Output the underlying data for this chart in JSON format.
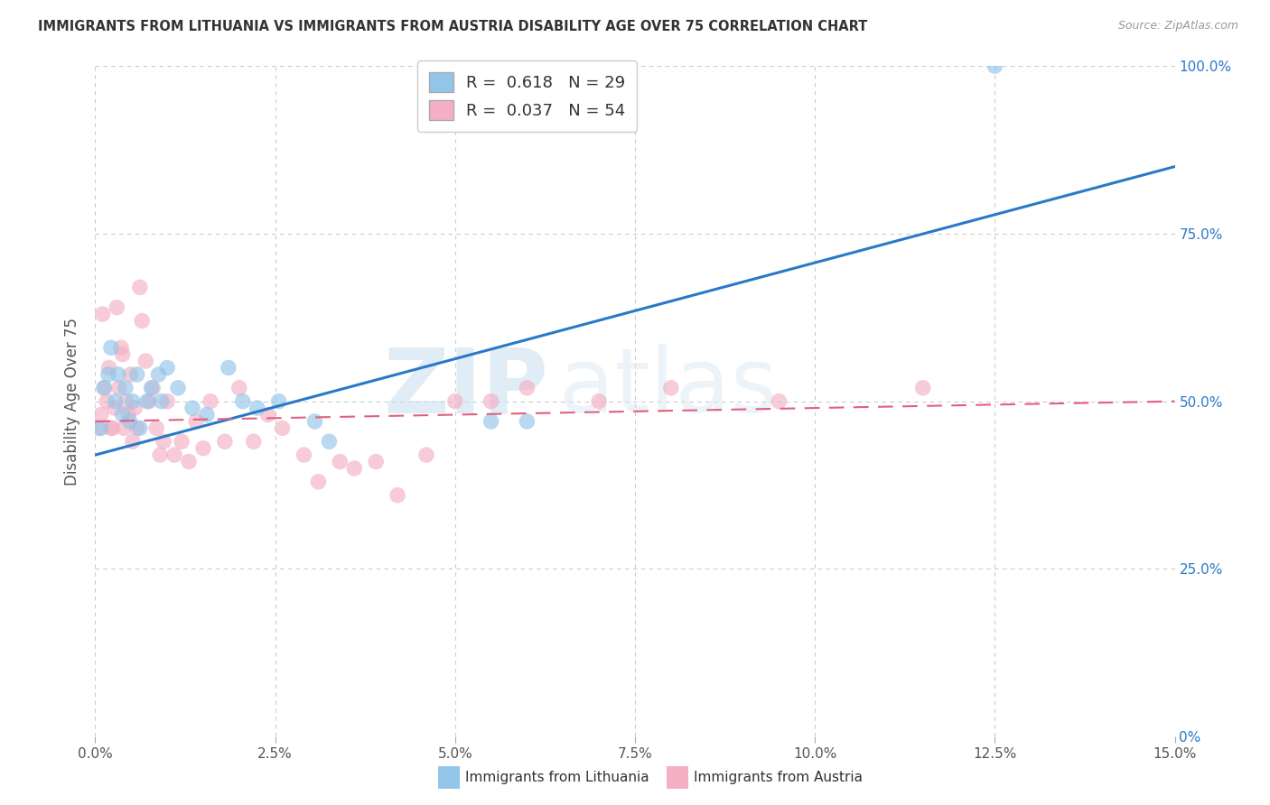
{
  "title": "IMMIGRANTS FROM LITHUANIA VS IMMIGRANTS FROM AUSTRIA DISABILITY AGE OVER 75 CORRELATION CHART",
  "source": "Source: ZipAtlas.com",
  "ylabel": "Disability Age Over 75",
  "x_ticks": [
    0.0,
    2.5,
    5.0,
    7.5,
    10.0,
    12.5,
    15.0
  ],
  "x_ticklabels": [
    "0.0%",
    "2.5%",
    "5.0%",
    "7.5%",
    "10.0%",
    "12.5%",
    "15.0%"
  ],
  "y_ticks": [
    0,
    25,
    50,
    75,
    100
  ],
  "y_ticklabels_right": [
    "0%",
    "25.0%",
    "50.0%",
    "75.0%",
    "100.0%"
  ],
  "xlim": [
    0.0,
    15.0
  ],
  "ylim": [
    0,
    100
  ],
  "color_blue": "#92c5e8",
  "color_pink": "#f4afc4",
  "color_blue_line": "#2979c8",
  "color_pink_line": "#e06080",
  "watermark_zip": "ZIP",
  "watermark_atlas": "atlas",
  "R1": 0.618,
  "N1": 29,
  "R2": 0.037,
  "N2": 54,
  "legend_label1": "Immigrants from Lithuania",
  "legend_label2": "Immigrants from Austria",
  "lithuania_x": [
    0.08,
    0.12,
    0.18,
    0.22,
    0.28,
    0.32,
    0.38,
    0.42,
    0.48,
    0.52,
    0.58,
    0.62,
    0.72,
    0.78,
    0.88,
    0.92,
    1.0,
    1.15,
    1.35,
    1.55,
    1.85,
    2.05,
    2.25,
    2.55,
    3.05,
    3.25,
    5.5,
    6.0,
    12.5
  ],
  "lithuania_y": [
    46,
    52,
    54,
    58,
    50,
    54,
    48,
    52,
    47,
    50,
    54,
    46,
    50,
    52,
    54,
    50,
    55,
    52,
    49,
    48,
    55,
    50,
    49,
    50,
    47,
    44,
    47,
    47,
    100
  ],
  "austria_x": [
    0.04,
    0.08,
    0.1,
    0.13,
    0.16,
    0.19,
    0.22,
    0.24,
    0.27,
    0.3,
    0.33,
    0.36,
    0.38,
    0.4,
    0.43,
    0.46,
    0.49,
    0.52,
    0.55,
    0.58,
    0.62,
    0.65,
    0.7,
    0.75,
    0.8,
    0.85,
    0.9,
    0.95,
    1.0,
    1.1,
    1.2,
    1.3,
    1.4,
    1.5,
    1.6,
    1.8,
    2.0,
    2.2,
    2.4,
    2.6,
    2.9,
    3.1,
    3.4,
    3.6,
    3.9,
    4.2,
    4.6,
    5.0,
    5.5,
    6.0,
    7.0,
    8.0,
    9.5,
    11.5
  ],
  "austria_y": [
    46,
    48,
    63,
    52,
    50,
    55,
    46,
    46,
    49,
    64,
    52,
    58,
    57,
    46,
    50,
    48,
    54,
    44,
    49,
    46,
    67,
    62,
    56,
    50,
    52,
    46,
    42,
    44,
    50,
    42,
    44,
    41,
    47,
    43,
    50,
    44,
    52,
    44,
    48,
    46,
    42,
    38,
    41,
    40,
    41,
    36,
    42,
    50,
    50,
    52,
    50,
    52,
    50,
    52
  ]
}
